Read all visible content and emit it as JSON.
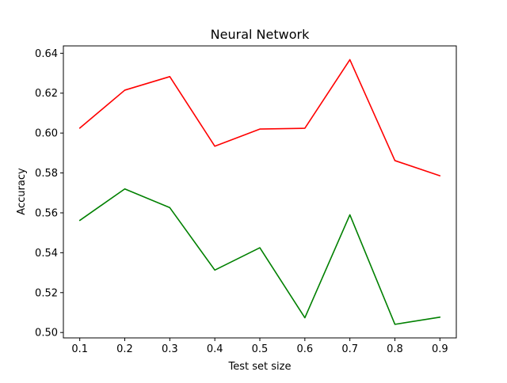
{
  "chart_data": {
    "type": "line",
    "title": "Neural Network",
    "xlabel": "Test set size",
    "ylabel": "Accuracy",
    "x": [
      0.1,
      0.2,
      0.3,
      0.4,
      0.5,
      0.6,
      0.7,
      0.8,
      0.9
    ],
    "x_ticks": [
      "0.1",
      "0.2",
      "0.3",
      "0.4",
      "0.5",
      "0.6",
      "0.7",
      "0.8",
      "0.9"
    ],
    "y_ticks": [
      "0.50",
      "0.52",
      "0.54",
      "0.56",
      "0.58",
      "0.60",
      "0.62",
      "0.64"
    ],
    "xlim": [
      0.0636,
      0.9364
    ],
    "ylim": [
      0.4973,
      0.6437
    ],
    "grid": false,
    "legend": "none",
    "series": [
      {
        "color": "#ff0000",
        "values": [
          0.6025,
          0.6215,
          0.6283,
          0.5934,
          0.602,
          0.6024,
          0.6368,
          0.5862,
          0.5786
        ]
      },
      {
        "color": "#008000",
        "values": [
          0.5562,
          0.572,
          0.5626,
          0.5313,
          0.5425,
          0.5074,
          0.559,
          0.5041,
          0.5077
        ]
      }
    ]
  }
}
